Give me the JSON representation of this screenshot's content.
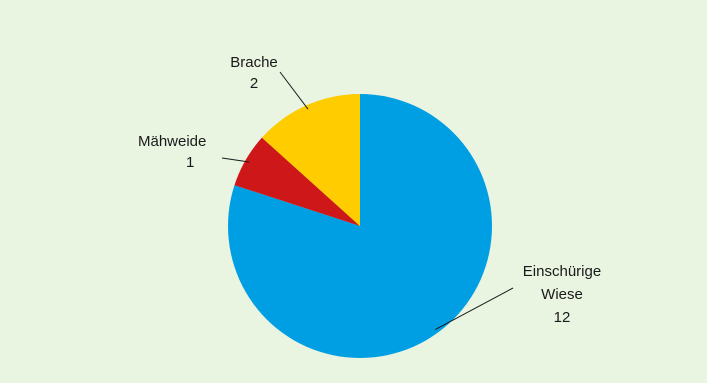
{
  "chart_data": {
    "type": "pie",
    "slices": [
      {
        "label_lines": [
          "Einschürige",
          "Wiese"
        ],
        "value": 12,
        "value_label": "12",
        "color": "#009fe3"
      },
      {
        "label_lines": [
          "Mähweide"
        ],
        "value": 1,
        "value_label": "1",
        "color": "#cd1719"
      },
      {
        "label_lines": [
          "Brache"
        ],
        "value": 2,
        "value_label": "2",
        "color": "#ffcc00"
      }
    ],
    "start": "12 o'clock",
    "direction": "clockwise",
    "legend": "none (direct labels with leader lines)"
  }
}
